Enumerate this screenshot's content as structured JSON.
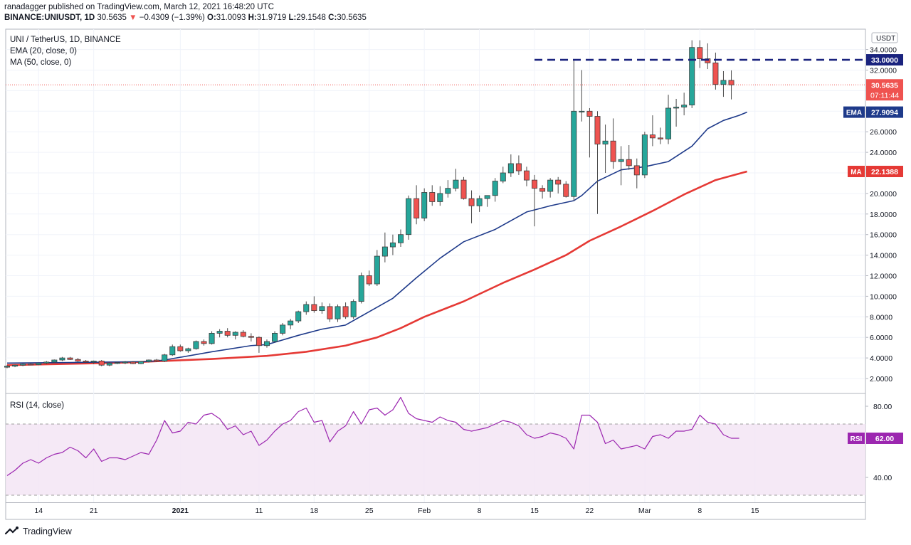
{
  "header": {
    "line1": "ranadagger published on TradingView.com, March 12, 2021 16:48:20 UTC",
    "symbol": "BINANCE:UNIUSDT, 1D",
    "last": "30.5635",
    "arrow": "▼",
    "change": "−0.4309 (−1.39%)",
    "o_label": "O:",
    "o_val": "31.0093",
    "h_label": "H:",
    "h_val": "31.9719",
    "l_label": "L:",
    "l_val": "29.1548",
    "c_label": "C:",
    "c_val": "30.5635"
  },
  "legend": {
    "title": "UNI / TetherUS, 1D, BINANCE",
    "ema": "EMA (20, close, 0)",
    "ma": "MA (50, close, 0)",
    "rsi": "RSI (14, close)"
  },
  "footer": {
    "brand": "TradingView"
  },
  "colors": {
    "up": "#26a69a",
    "down": "#ef5350",
    "ema": "#1e3a8a",
    "ma": "#e53935",
    "rsi": "#9c27b0",
    "level": "#1a237e"
  },
  "chart_data": [
    {
      "type": "candlestick",
      "title": "UNI / TetherUS, 1D, BINANCE",
      "currency": "USDT",
      "ylim": [
        1.5,
        36
      ],
      "y_ticks": [
        "2.0000",
        "4.0000",
        "6.0000",
        "8.0000",
        "10.0000",
        "12.0000",
        "14.0000",
        "16.0000",
        "18.0000",
        "20.0000",
        "22.0000",
        "24.0000",
        "26.0000",
        "28.0000",
        "30.0000",
        "32.0000",
        "34.0000"
      ],
      "x_ticks": [
        {
          "label": "14",
          "idx": 4
        },
        {
          "label": "21",
          "idx": 11
        },
        {
          "label": "2021",
          "idx": 22
        },
        {
          "label": "11",
          "idx": 32
        },
        {
          "label": "18",
          "idx": 39
        },
        {
          "label": "25",
          "idx": 46
        },
        {
          "label": "Feb",
          "idx": 53
        },
        {
          "label": "8",
          "idx": 60
        },
        {
          "label": "15",
          "idx": 67
        },
        {
          "label": "22",
          "idx": 74
        },
        {
          "label": "Mar",
          "idx": 81
        },
        {
          "label": "8",
          "idx": 88
        },
        {
          "label": "15",
          "idx": 95
        }
      ],
      "ohlc": [
        [
          3.1,
          3.3,
          3.0,
          3.2
        ],
        [
          3.2,
          3.35,
          3.1,
          3.3
        ],
        [
          3.3,
          3.45,
          3.2,
          3.4
        ],
        [
          3.4,
          3.5,
          3.3,
          3.35
        ],
        [
          3.35,
          3.55,
          3.3,
          3.5
        ],
        [
          3.5,
          3.7,
          3.4,
          3.6
        ],
        [
          3.6,
          3.85,
          3.5,
          3.8
        ],
        [
          3.8,
          4.1,
          3.7,
          4.0
        ],
        [
          4.0,
          4.1,
          3.8,
          3.85
        ],
        [
          3.85,
          4.0,
          3.6,
          3.7
        ],
        [
          3.7,
          3.8,
          3.5,
          3.6
        ],
        [
          3.6,
          3.75,
          3.4,
          3.7
        ],
        [
          3.7,
          3.8,
          3.2,
          3.3
        ],
        [
          3.3,
          3.6,
          3.2,
          3.5
        ],
        [
          3.5,
          3.65,
          3.4,
          3.55
        ],
        [
          3.55,
          3.7,
          3.4,
          3.6
        ],
        [
          3.6,
          3.7,
          3.4,
          3.45
        ],
        [
          3.45,
          3.7,
          3.4,
          3.65
        ],
        [
          3.65,
          3.85,
          3.55,
          3.8
        ],
        [
          3.8,
          3.9,
          3.6,
          3.7
        ],
        [
          3.7,
          4.4,
          3.6,
          4.3
        ],
        [
          4.3,
          5.3,
          4.2,
          5.1
        ],
        [
          5.1,
          5.3,
          4.6,
          4.7
        ],
        [
          4.7,
          5.0,
          4.5,
          4.9
        ],
        [
          4.9,
          5.7,
          4.8,
          5.6
        ],
        [
          5.6,
          5.8,
          5.2,
          5.4
        ],
        [
          5.4,
          6.6,
          5.3,
          6.4
        ],
        [
          6.4,
          6.8,
          6.0,
          6.6
        ],
        [
          6.6,
          6.9,
          6.0,
          6.2
        ],
        [
          6.2,
          6.6,
          5.8,
          6.5
        ],
        [
          6.5,
          6.7,
          6.0,
          6.1
        ],
        [
          6.1,
          6.4,
          5.6,
          6.0
        ],
        [
          6.0,
          6.1,
          4.5,
          5.2
        ],
        [
          5.2,
          5.8,
          5.0,
          5.6
        ],
        [
          5.6,
          6.6,
          5.5,
          6.4
        ],
        [
          6.4,
          7.4,
          6.2,
          7.2
        ],
        [
          7.2,
          7.8,
          6.8,
          7.6
        ],
        [
          7.6,
          8.6,
          7.4,
          8.5
        ],
        [
          8.5,
          9.5,
          8.2,
          9.2
        ],
        [
          9.2,
          10.0,
          8.4,
          8.6
        ],
        [
          8.6,
          9.4,
          8.3,
          9.0
        ],
        [
          9.0,
          9.3,
          7.5,
          7.8
        ],
        [
          7.8,
          9.2,
          7.5,
          9.0
        ],
        [
          9.0,
          9.4,
          7.8,
          8.0
        ],
        [
          8.0,
          9.7,
          7.8,
          9.5
        ],
        [
          9.5,
          12.3,
          9.3,
          12.0
        ],
        [
          12.0,
          12.5,
          11.0,
          11.2
        ],
        [
          11.2,
          14.5,
          11.0,
          13.9
        ],
        [
          13.9,
          16.2,
          13.3,
          14.8
        ],
        [
          14.8,
          16.0,
          14.0,
          15.2
        ],
        [
          15.2,
          16.5,
          14.8,
          16.0
        ],
        [
          16.0,
          19.8,
          15.5,
          19.5
        ],
        [
          19.5,
          20.8,
          17.0,
          17.6
        ],
        [
          17.6,
          20.5,
          17.3,
          20.1
        ],
        [
          20.1,
          20.8,
          18.8,
          19.2
        ],
        [
          19.2,
          20.7,
          18.8,
          20.0
        ],
        [
          20.0,
          21.3,
          19.6,
          20.5
        ],
        [
          20.5,
          22.4,
          20.2,
          21.3
        ],
        [
          21.3,
          21.6,
          19.4,
          19.5
        ],
        [
          19.5,
          20.3,
          17.1,
          18.8
        ],
        [
          18.8,
          19.8,
          18.2,
          19.5
        ],
        [
          19.5,
          19.8,
          18.7,
          19.8
        ],
        [
          19.8,
          21.5,
          19.2,
          21.2
        ],
        [
          21.2,
          22.6,
          21.0,
          22.0
        ],
        [
          22.0,
          23.8,
          21.6,
          22.9
        ],
        [
          22.9,
          23.7,
          21.8,
          22.2
        ],
        [
          22.2,
          22.6,
          20.7,
          21.3
        ],
        [
          21.3,
          21.8,
          16.8,
          20.5
        ],
        [
          20.5,
          20.8,
          19.5,
          20.2
        ],
        [
          20.2,
          21.5,
          19.6,
          21.3
        ],
        [
          21.3,
          21.6,
          20.0,
          20.9
        ],
        [
          20.9,
          21.2,
          19.6,
          19.7
        ],
        [
          19.7,
          33.0,
          19.3,
          28.0
        ],
        [
          28.0,
          32.0,
          27.0,
          28.0
        ],
        [
          28.0,
          28.3,
          23.5,
          27.5
        ],
        [
          27.5,
          28.0,
          18.0,
          24.8
        ],
        [
          24.8,
          26.7,
          22.0,
          25.1
        ],
        [
          25.1,
          27.3,
          22.4,
          23.1
        ],
        [
          23.1,
          24.6,
          20.8,
          23.3
        ],
        [
          23.3,
          24.7,
          22.3,
          22.7
        ],
        [
          22.7,
          23.4,
          20.5,
          21.8
        ],
        [
          21.8,
          26.0,
          21.5,
          25.7
        ],
        [
          25.7,
          27.6,
          24.6,
          25.4
        ],
        [
          25.4,
          26.4,
          24.8,
          25.3
        ],
        [
          25.3,
          29.6,
          24.8,
          28.3
        ],
        [
          28.3,
          29.2,
          26.5,
          28.4
        ],
        [
          28.4,
          29.8,
          27.6,
          28.6
        ],
        [
          28.6,
          34.9,
          28.3,
          34.2
        ],
        [
          34.2,
          34.9,
          32.2,
          33.1
        ],
        [
          33.1,
          34.6,
          32.1,
          32.7
        ],
        [
          32.7,
          33.7,
          30.1,
          30.6
        ],
        [
          30.6,
          31.9,
          29.4,
          31.0
        ],
        [
          31.0,
          31.97,
          29.15,
          30.56
        ]
      ],
      "ema20": {
        "name": "EMA",
        "label": "27.9094",
        "points": [
          [
            0,
            3.5
          ],
          [
            8,
            3.55
          ],
          [
            18,
            3.65
          ],
          [
            20,
            3.8
          ],
          [
            26,
            4.6
          ],
          [
            31,
            5.2
          ],
          [
            33,
            5.3
          ],
          [
            37,
            6.2
          ],
          [
            40,
            6.8
          ],
          [
            43,
            7.2
          ],
          [
            46,
            8.5
          ],
          [
            49,
            9.8
          ],
          [
            52,
            11.8
          ],
          [
            55,
            13.7
          ],
          [
            58,
            15.3
          ],
          [
            62,
            16.5
          ],
          [
            66,
            18.2
          ],
          [
            69,
            18.8
          ],
          [
            72,
            19.3
          ],
          [
            73,
            19.8
          ],
          [
            75,
            21.2
          ],
          [
            78,
            22.3
          ],
          [
            81,
            22.6
          ],
          [
            84,
            23.1
          ],
          [
            87,
            24.6
          ],
          [
            89,
            26.3
          ],
          [
            91,
            27.1
          ],
          [
            93,
            27.6
          ],
          [
            94,
            27.91
          ]
        ]
      },
      "ma50": {
        "name": "MA",
        "label": "22.1388",
        "points": [
          [
            0,
            3.3
          ],
          [
            15,
            3.55
          ],
          [
            26,
            3.9
          ],
          [
            33,
            4.2
          ],
          [
            38,
            4.6
          ],
          [
            43,
            5.2
          ],
          [
            47,
            6.0
          ],
          [
            50,
            6.9
          ],
          [
            53,
            8.0
          ],
          [
            58,
            9.5
          ],
          [
            63,
            11.3
          ],
          [
            67,
            12.6
          ],
          [
            71,
            14.0
          ],
          [
            74,
            15.4
          ],
          [
            78,
            16.8
          ],
          [
            82,
            18.3
          ],
          [
            86,
            19.9
          ],
          [
            90,
            21.3
          ],
          [
            94,
            22.14
          ]
        ]
      },
      "horizontal_level": {
        "value": 33.0,
        "label": "33.0000",
        "from_idx": 67,
        "style": "dashed"
      },
      "last_price": {
        "value": "30.5635",
        "countdown": "07:11:44"
      }
    },
    {
      "type": "line",
      "title": "RSI (14, close)",
      "ylim": [
        24,
        88
      ],
      "y_ticks": [
        "40.00",
        "80.00"
      ],
      "bands": [
        30,
        70
      ],
      "last_label": "62.00",
      "series_label": "RSI",
      "values": [
        41,
        44,
        48,
        50,
        48,
        51,
        53,
        54,
        57,
        55,
        51,
        56,
        49,
        51,
        51,
        50,
        52,
        54,
        53,
        61,
        72,
        65,
        66,
        71,
        70,
        75,
        76,
        73,
        67,
        69,
        64,
        66,
        58,
        61,
        66,
        70,
        72,
        77,
        79,
        71,
        72,
        60,
        66,
        69,
        77,
        70,
        78,
        79,
        75,
        78,
        85,
        76,
        73,
        72,
        71,
        74,
        72,
        71,
        67,
        66,
        67,
        68,
        70,
        72,
        71,
        69,
        64,
        62,
        63,
        65,
        64,
        62,
        56,
        75,
        75,
        71,
        59,
        61,
        56,
        57,
        58,
        56,
        63,
        64,
        62,
        66,
        66,
        67,
        75,
        71,
        70,
        64,
        62,
        62
      ]
    }
  ]
}
